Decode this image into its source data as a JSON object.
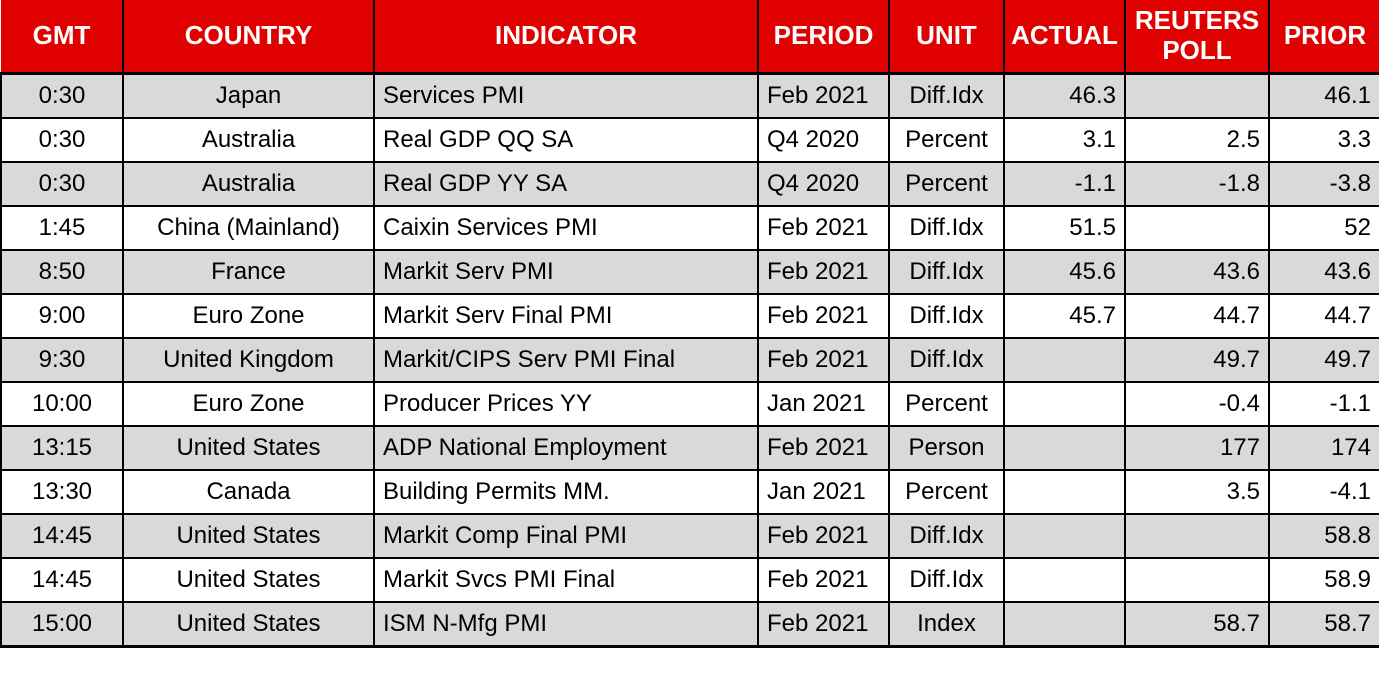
{
  "colors": {
    "header_bg": "#E00000",
    "header_text": "#FFFFFF",
    "row_alt_bg": "#D9D9D9",
    "row_bg": "#FFFFFF",
    "border": "#000000"
  },
  "chart_data": {
    "type": "table",
    "columns": [
      {
        "key": "gmt",
        "label": "GMT"
      },
      {
        "key": "country",
        "label": "COUNTRY"
      },
      {
        "key": "indicator",
        "label": "INDICATOR"
      },
      {
        "key": "period",
        "label": "PERIOD"
      },
      {
        "key": "unit",
        "label": "UNIT"
      },
      {
        "key": "actual",
        "label": "ACTUAL"
      },
      {
        "key": "reuters-poll",
        "label": "REUTERS POLL"
      },
      {
        "key": "prior",
        "label": "PRIOR"
      }
    ],
    "rows": [
      [
        "0:30",
        "Japan",
        "Services PMI",
        "Feb 2021",
        "Diff.Idx",
        "46.3",
        "",
        "46.1"
      ],
      [
        "0:30",
        "Australia",
        "Real GDP QQ SA",
        "Q4 2020",
        "Percent",
        "3.1",
        "2.5",
        "3.3"
      ],
      [
        "0:30",
        "Australia",
        "Real GDP YY SA",
        "Q4 2020",
        "Percent",
        "-1.1",
        "-1.8",
        "-3.8"
      ],
      [
        "1:45",
        "China (Mainland)",
        "Caixin Services PMI",
        "Feb 2021",
        "Diff.Idx",
        "51.5",
        "",
        "52"
      ],
      [
        "8:50",
        "France",
        "Markit Serv PMI",
        "Feb 2021",
        "Diff.Idx",
        "45.6",
        "43.6",
        "43.6"
      ],
      [
        "9:00",
        "Euro Zone",
        "Markit Serv Final PMI",
        "Feb 2021",
        "Diff.Idx",
        "45.7",
        "44.7",
        "44.7"
      ],
      [
        "9:30",
        "United Kingdom",
        "Markit/CIPS Serv PMI Final",
        "Feb 2021",
        "Diff.Idx",
        "",
        "49.7",
        "49.7"
      ],
      [
        "10:00",
        "Euro Zone",
        "Producer Prices YY",
        "Jan 2021",
        "Percent",
        "",
        "-0.4",
        "-1.1"
      ],
      [
        "13:15",
        "United States",
        "ADP National Employment",
        "Feb 2021",
        "Person",
        "",
        "177",
        "174"
      ],
      [
        "13:30",
        "Canada",
        "Building Permits MM.",
        "Jan 2021",
        "Percent",
        "",
        "3.5",
        "-4.1"
      ],
      [
        "14:45",
        "United States",
        "Markit Comp Final PMI",
        "Feb 2021",
        "Diff.Idx",
        "",
        "",
        "58.8"
      ],
      [
        "14:45",
        "United States",
        "Markit Svcs PMI Final",
        "Feb 2021",
        "Diff.Idx",
        "",
        "",
        "58.9"
      ],
      [
        "15:00",
        "United States",
        "ISM N-Mfg PMI",
        "Feb 2021",
        "Index",
        "",
        "58.7",
        "58.7"
      ]
    ]
  }
}
